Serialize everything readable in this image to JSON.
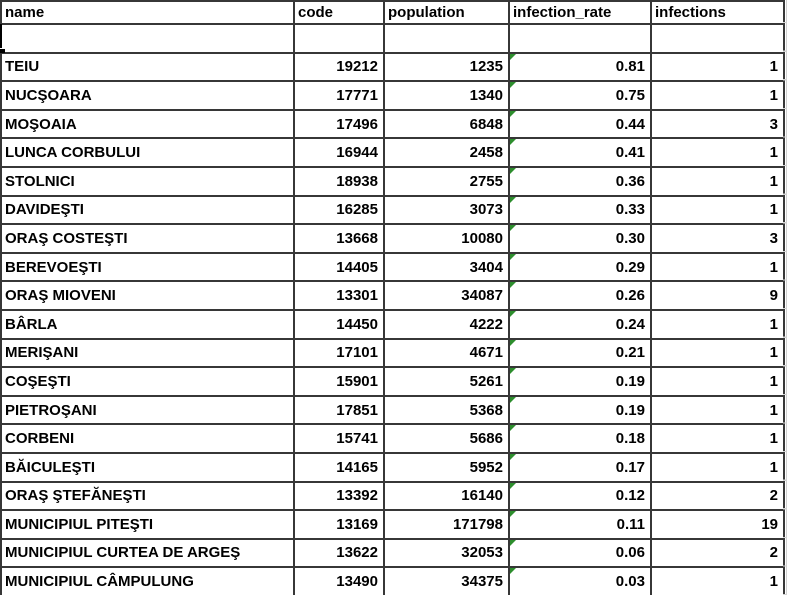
{
  "sheet": {
    "columns": [
      {
        "key": "name",
        "label": "name",
        "align": "left"
      },
      {
        "key": "code",
        "label": "code",
        "align": "right"
      },
      {
        "key": "population",
        "label": "population",
        "align": "right"
      },
      {
        "key": "infection_rate",
        "label": "infection_rate",
        "align": "right"
      },
      {
        "key": "infections",
        "label": "infections",
        "align": "right"
      }
    ],
    "empty_row_present": true,
    "rows": [
      {
        "name": "TEIU",
        "code": "19212",
        "population": "1235",
        "infection_rate": "0.81",
        "infections": "1",
        "flag": true
      },
      {
        "name": "NUCŞOARA",
        "code": "17771",
        "population": "1340",
        "infection_rate": "0.75",
        "infections": "1",
        "flag": true
      },
      {
        "name": "MOŞOAIA",
        "code": "17496",
        "population": "6848",
        "infection_rate": "0.44",
        "infections": "3",
        "flag": true
      },
      {
        "name": "LUNCA CORBULUI",
        "code": "16944",
        "population": "2458",
        "infection_rate": "0.41",
        "infections": "1",
        "flag": true
      },
      {
        "name": "STOLNICI",
        "code": "18938",
        "population": "2755",
        "infection_rate": "0.36",
        "infections": "1",
        "flag": true
      },
      {
        "name": "DAVIDEŞTI",
        "code": "16285",
        "population": "3073",
        "infection_rate": "0.33",
        "infections": "1",
        "flag": true
      },
      {
        "name": "ORAŞ COSTEŞTI",
        "code": "13668",
        "population": "10080",
        "infection_rate": "0.30",
        "infections": "3",
        "flag": true
      },
      {
        "name": "BEREVOEŞTI",
        "code": "14405",
        "population": "3404",
        "infection_rate": "0.29",
        "infections": "1",
        "flag": true
      },
      {
        "name": "ORAŞ MIOVENI",
        "code": "13301",
        "population": "34087",
        "infection_rate": "0.26",
        "infections": "9",
        "flag": true
      },
      {
        "name": "BÂRLA",
        "code": "14450",
        "population": "4222",
        "infection_rate": "0.24",
        "infections": "1",
        "flag": true
      },
      {
        "name": "MERIŞANI",
        "code": "17101",
        "population": "4671",
        "infection_rate": "0.21",
        "infections": "1",
        "flag": true
      },
      {
        "name": "COŞEŞTI",
        "code": "15901",
        "population": "5261",
        "infection_rate": "0.19",
        "infections": "1",
        "flag": true
      },
      {
        "name": "PIETROŞANI",
        "code": "17851",
        "population": "5368",
        "infection_rate": "0.19",
        "infections": "1",
        "flag": true
      },
      {
        "name": "CORBENI",
        "code": "15741",
        "population": "5686",
        "infection_rate": "0.18",
        "infections": "1",
        "flag": true
      },
      {
        "name": "BĂICULEŞTI",
        "code": "14165",
        "population": "5952",
        "infection_rate": "0.17",
        "infections": "1",
        "flag": true
      },
      {
        "name": "ORAŞ ŞTEFĂNEŞTI",
        "code": "13392",
        "population": "16140",
        "infection_rate": "0.12",
        "infections": "2",
        "flag": true
      },
      {
        "name": "MUNICIPIUL PITEŞTI",
        "code": "13169",
        "population": "171798",
        "infection_rate": "0.11",
        "infections": "19",
        "flag": true
      },
      {
        "name": "MUNICIPIUL CURTEA DE ARGEŞ",
        "code": "13622",
        "population": "32053",
        "infection_rate": "0.06",
        "infections": "2",
        "flag": true
      },
      {
        "name": "MUNICIPIUL CÂMPULUNG",
        "code": "13490",
        "population": "34375",
        "infection_rate": "0.03",
        "infections": "1",
        "flag": true
      }
    ]
  },
  "colors": {
    "cell_border": "#373737",
    "error_flag_green": "#2d8e2d",
    "faint_gridline": "#d0d0d0",
    "background": "#ffffff",
    "text": "#000000"
  }
}
